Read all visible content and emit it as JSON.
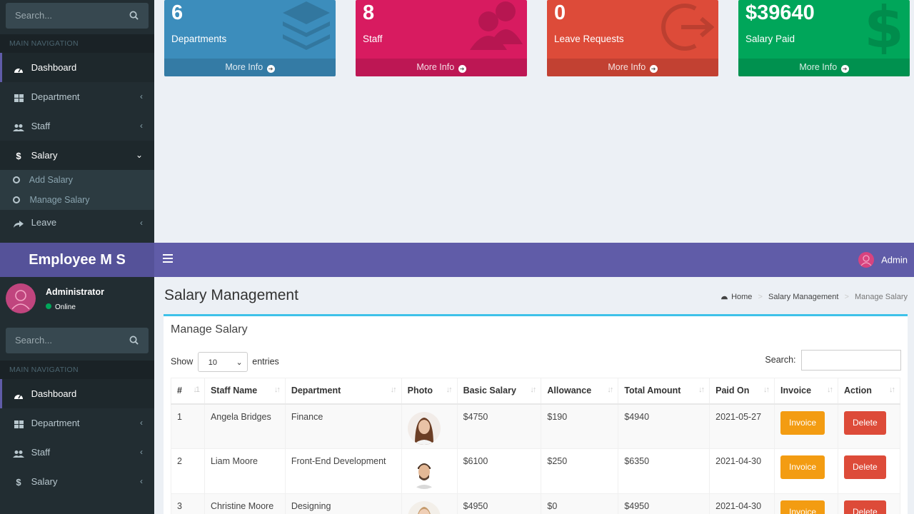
{
  "top_sidebar": {
    "search_placeholder": "Search...",
    "nav_header": "MAIN NAVIGATION",
    "items": [
      {
        "label": "Dashboard"
      },
      {
        "label": "Department"
      },
      {
        "label": "Staff"
      },
      {
        "label": "Salary"
      },
      {
        "label": "Leave"
      }
    ],
    "salary_sub": [
      {
        "label": "Add Salary"
      },
      {
        "label": "Manage Salary"
      }
    ]
  },
  "stats": [
    {
      "value": "6",
      "label": "Departments",
      "more": "More Info",
      "color": "#3c8dbc"
    },
    {
      "value": "8",
      "label": "Staff",
      "more": "More Info",
      "color": "#d81b60"
    },
    {
      "value": "0",
      "label": "Leave Requests",
      "more": "More Info",
      "color": "#dd4b39"
    },
    {
      "value": "$39640",
      "label": "Salary Paid",
      "more": "More Info",
      "color": "#00a65a"
    }
  ],
  "header": {
    "logo": "Employee M S",
    "user": "Admin"
  },
  "bottom_sidebar": {
    "user_name": "Administrator",
    "user_status": "Online",
    "search_placeholder": "Search...",
    "nav_header": "MAIN NAVIGATION",
    "items": [
      {
        "label": "Dashboard"
      },
      {
        "label": "Department"
      },
      {
        "label": "Staff"
      },
      {
        "label": "Salary"
      }
    ]
  },
  "page": {
    "title": "Salary Management",
    "breadcrumb": [
      "Home",
      "Salary Management",
      "Manage Salary"
    ],
    "box_title": "Manage Salary",
    "show_label": "Show",
    "entries_value": "10",
    "entries_label": "entries",
    "search_label": "Search:"
  },
  "table": {
    "headers": [
      "#",
      "Staff Name",
      "Department",
      "Photo",
      "Basic Salary",
      "Allowance",
      "Total Amount",
      "Paid On",
      "Invoice",
      "Action"
    ],
    "rows": [
      {
        "num": "1",
        "name": "Angela Bridges",
        "dept": "Finance",
        "basic": "$4750",
        "allow": "$190",
        "total": "$4940",
        "paid": "2021-05-27",
        "invoice": "Invoice",
        "action": "Delete"
      },
      {
        "num": "2",
        "name": "Liam Moore",
        "dept": "Front-End Development",
        "basic": "$6100",
        "allow": "$250",
        "total": "$6350",
        "paid": "2021-04-30",
        "invoice": "Invoice",
        "action": "Delete"
      },
      {
        "num": "3",
        "name": "Christine Moore",
        "dept": "Designing",
        "basic": "$4950",
        "allow": "$0",
        "total": "$4950",
        "paid": "2021-04-30",
        "invoice": "Invoice",
        "action": "Delete"
      }
    ]
  }
}
